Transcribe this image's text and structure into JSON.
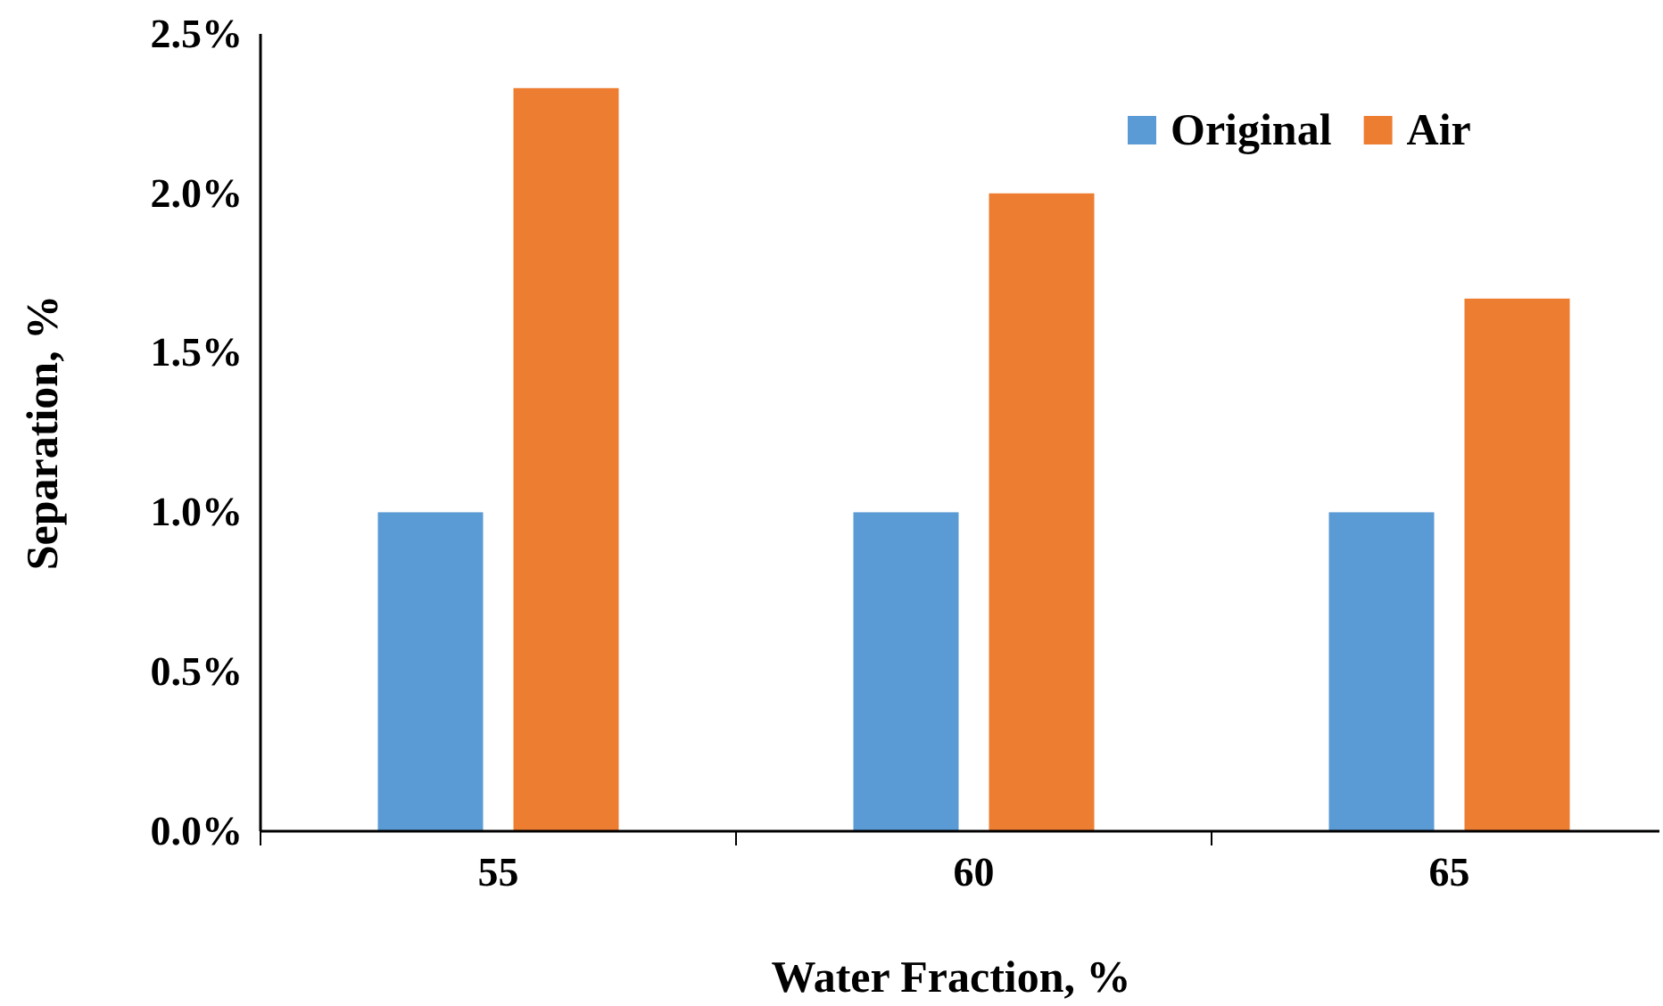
{
  "chart_data": {
    "type": "bar",
    "xlabel": "Water Fraction, %",
    "ylabel": "Separation, %",
    "categories": [
      "55",
      "60",
      "65"
    ],
    "series": [
      {
        "name": "Original",
        "color": "#5b9bd5",
        "values": [
          1.0,
          1.0,
          1.0
        ]
      },
      {
        "name": "Air",
        "color": "#ed7d31",
        "values": [
          2.33,
          2.0,
          1.67
        ]
      }
    ],
    "ylim": [
      0,
      2.5
    ],
    "yticks": [
      {
        "value": 0,
        "label": "0.0%"
      },
      {
        "value": 0.5,
        "label": "0.5%"
      },
      {
        "value": 1,
        "label": "1.0%"
      },
      {
        "value": 1.5,
        "label": "1.5%"
      },
      {
        "value": 2,
        "label": "2.0%"
      },
      {
        "value": 2.5,
        "label": "2.5%"
      }
    ],
    "grid": false,
    "legend": "top right"
  }
}
